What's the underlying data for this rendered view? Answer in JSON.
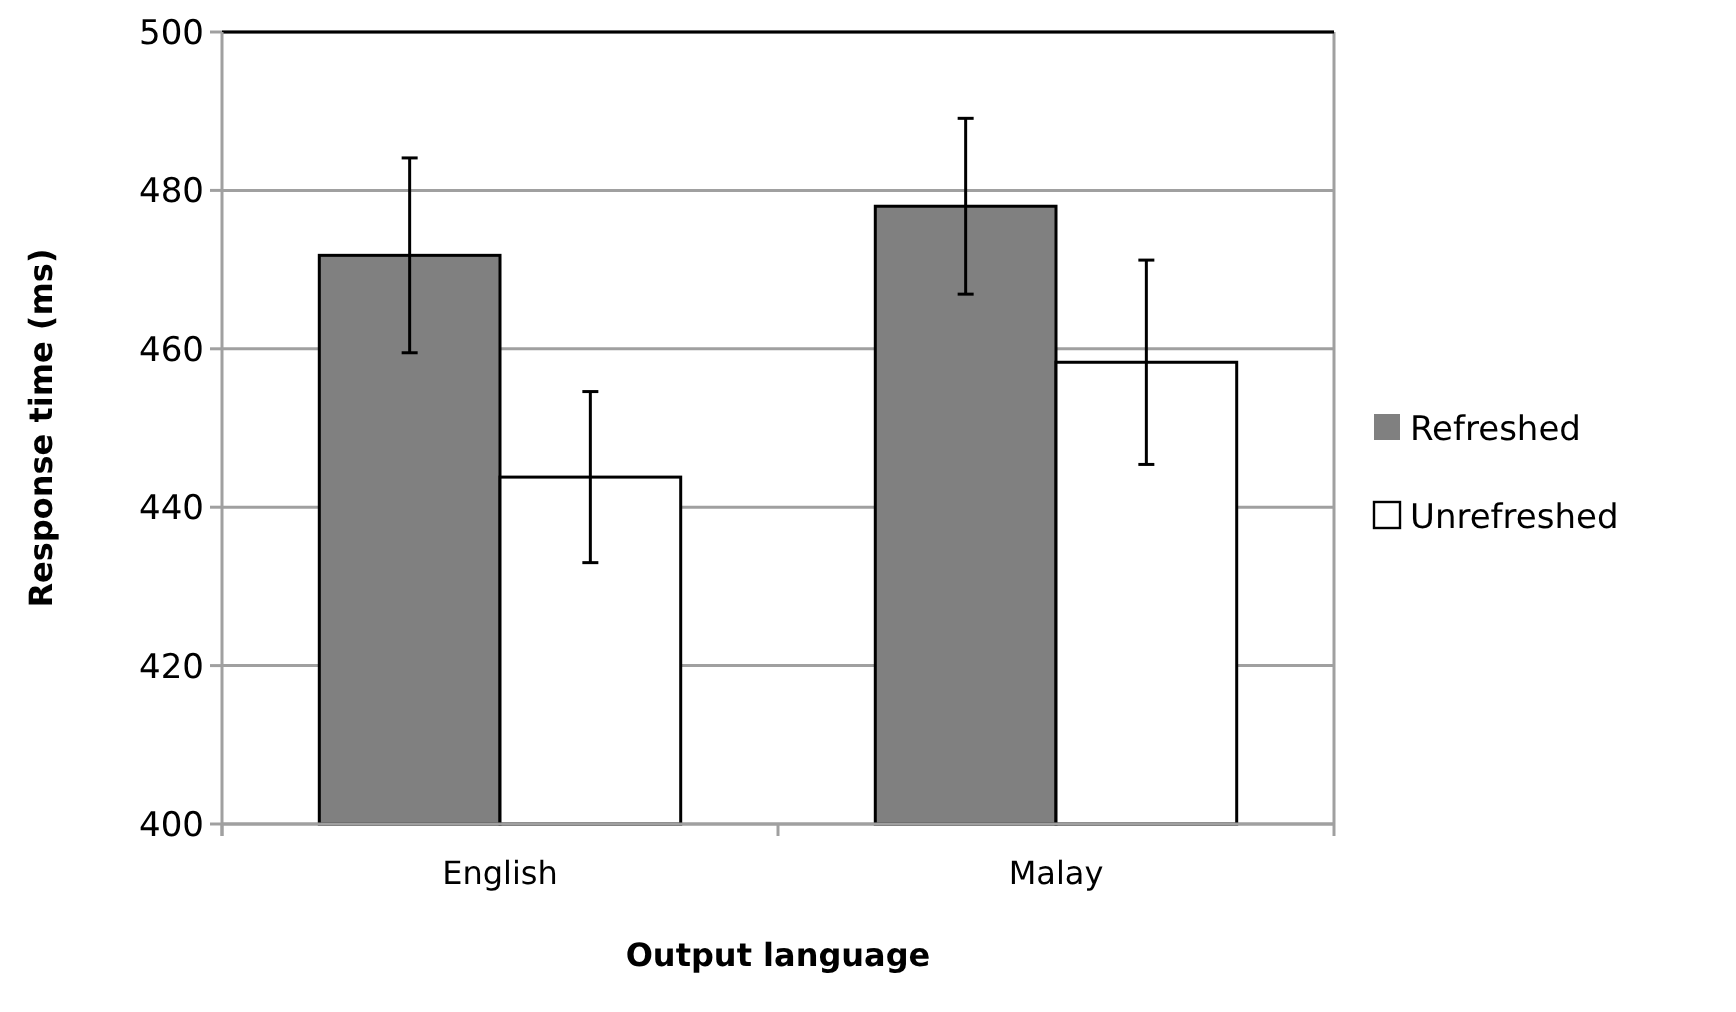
{
  "chart_data": {
    "type": "bar",
    "xlabel": "Output language",
    "ylabel": "Response time (ms)",
    "categories": [
      "English",
      "Malay"
    ],
    "series": [
      {
        "name": "Refreshed",
        "color": "#808080",
        "values": [
          471.8,
          478.0
        ],
        "errors": [
          12.3,
          11.1
        ]
      },
      {
        "name": "Unrefreshed",
        "color": "#ffffff",
        "values": [
          443.8,
          458.3
        ],
        "errors": [
          10.8,
          12.9
        ]
      }
    ],
    "ylim": [
      400,
      500
    ],
    "yticks": [
      400,
      420,
      440,
      460,
      480,
      500
    ],
    "grid": "y",
    "legend": "right"
  }
}
